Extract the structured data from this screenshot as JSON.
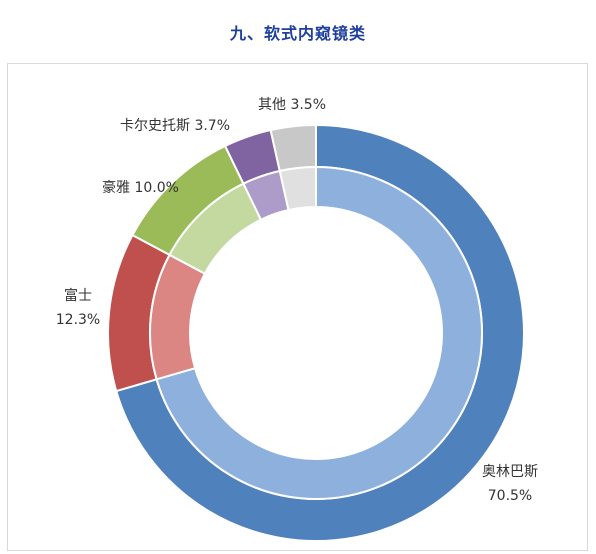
{
  "page_title": "九、软式内窥镜类",
  "chart_data": {
    "type": "pie",
    "title": "九、软式内窥镜类",
    "categories": [
      "奥林巴斯",
      "富士",
      "豪雅",
      "卡尔史托斯",
      "其他"
    ],
    "values": [
      70.5,
      12.3,
      10.0,
      3.7,
      3.5
    ],
    "value_labels": [
      "70.5%",
      "12.3%",
      "10.0%",
      "3.7%",
      "3.5%"
    ],
    "colors_outer": [
      "#4f81bd",
      "#c0504d",
      "#9bbb59",
      "#8064a2",
      "#c8c8c8"
    ],
    "colors_inner": [
      "#8eb0dc",
      "#db8683",
      "#c3d9a0",
      "#ad9bc9",
      "#e0e0e0"
    ],
    "legend": "none",
    "grid": false
  }
}
